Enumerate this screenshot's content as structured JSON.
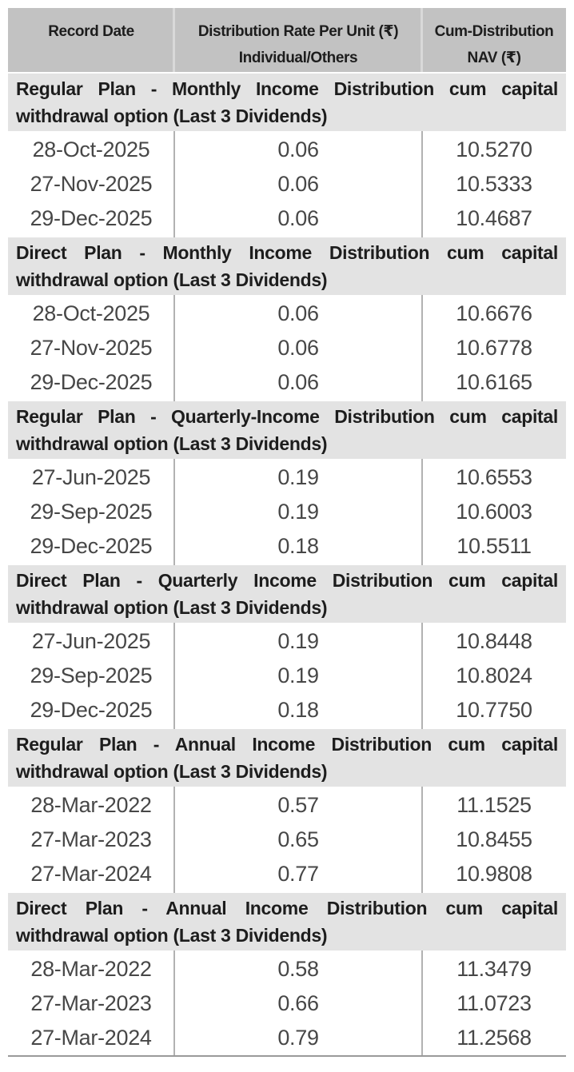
{
  "colors": {
    "header_bg": "#c2c2c2",
    "band_bg": "#e3e3e3",
    "divider": "#b2b2b2",
    "header_divider": "#d9d9d9",
    "text_dark": "#1d1d1d",
    "text_data": "#474747",
    "bottom_border": "#9a9a9a",
    "page_bg": "#ffffff"
  },
  "header": {
    "col1": {
      "line1": "Record Date"
    },
    "col2": {
      "line1": "Distribution Rate Per Unit (₹)",
      "line2": "Individual/Others"
    },
    "col3": {
      "line1": "Cum-Distribution",
      "line2": "NAV (₹)"
    }
  },
  "sections": [
    {
      "title_line1": "Regular Plan - Monthly Income Distribution cum capital",
      "title_line2": "withdrawal option (Last 3 Dividends)",
      "rows": [
        {
          "date": "28-Oct-2025",
          "rate": "0.06",
          "nav": "10.5270"
        },
        {
          "date": "27-Nov-2025",
          "rate": "0.06",
          "nav": "10.5333"
        },
        {
          "date": "29-Dec-2025",
          "rate": "0.06",
          "nav": "10.4687"
        }
      ]
    },
    {
      "title_line1": "Direct Plan - Monthly Income Distribution cum capital",
      "title_line2": "withdrawal option (Last 3 Dividends)",
      "rows": [
        {
          "date": "28-Oct-2025",
          "rate": "0.06",
          "nav": "10.6676"
        },
        {
          "date": "27-Nov-2025",
          "rate": "0.06",
          "nav": "10.6778"
        },
        {
          "date": "29-Dec-2025",
          "rate": "0.06",
          "nav": "10.6165"
        }
      ]
    },
    {
      "title_line1": "Regular Plan - Quarterly-Income Distribution cum capital",
      "title_line2": "withdrawal option (Last 3 Dividends)",
      "rows": [
        {
          "date": "27-Jun-2025",
          "rate": "0.19",
          "nav": "10.6553"
        },
        {
          "date": "29-Sep-2025",
          "rate": "0.19",
          "nav": "10.6003"
        },
        {
          "date": "29-Dec-2025",
          "rate": "0.18",
          "nav": "10.5511"
        }
      ]
    },
    {
      "title_line1": "Direct Plan - Quarterly Income Distribution cum capital",
      "title_line2": "withdrawal option (Last 3 Dividends)",
      "rows": [
        {
          "date": "27-Jun-2025",
          "rate": "0.19",
          "nav": "10.8448"
        },
        {
          "date": "29-Sep-2025",
          "rate": "0.19",
          "nav": "10.8024"
        },
        {
          "date": "29-Dec-2025",
          "rate": "0.18",
          "nav": "10.7750"
        }
      ]
    },
    {
      "title_line1": "Regular Plan - Annual Income Distribution cum capital",
      "title_line2": "withdrawal option (Last 3 Dividends)",
      "rows": [
        {
          "date": "28-Mar-2022",
          "rate": "0.57",
          "nav": "11.1525"
        },
        {
          "date": "27-Mar-2023",
          "rate": "0.65",
          "nav": "10.8455"
        },
        {
          "date": "27-Mar-2024",
          "rate": "0.77",
          "nav": "10.9808"
        }
      ]
    },
    {
      "title_line1": "Direct Plan - Annual Income Distribution cum capital",
      "title_line2": "withdrawal option (Last 3 Dividends)",
      "rows": [
        {
          "date": "28-Mar-2022",
          "rate": "0.58",
          "nav": "11.3479"
        },
        {
          "date": "27-Mar-2023",
          "rate": "0.66",
          "nav": "11.0723"
        },
        {
          "date": "27-Mar-2024",
          "rate": "0.79",
          "nav": "11.2568"
        }
      ]
    }
  ]
}
